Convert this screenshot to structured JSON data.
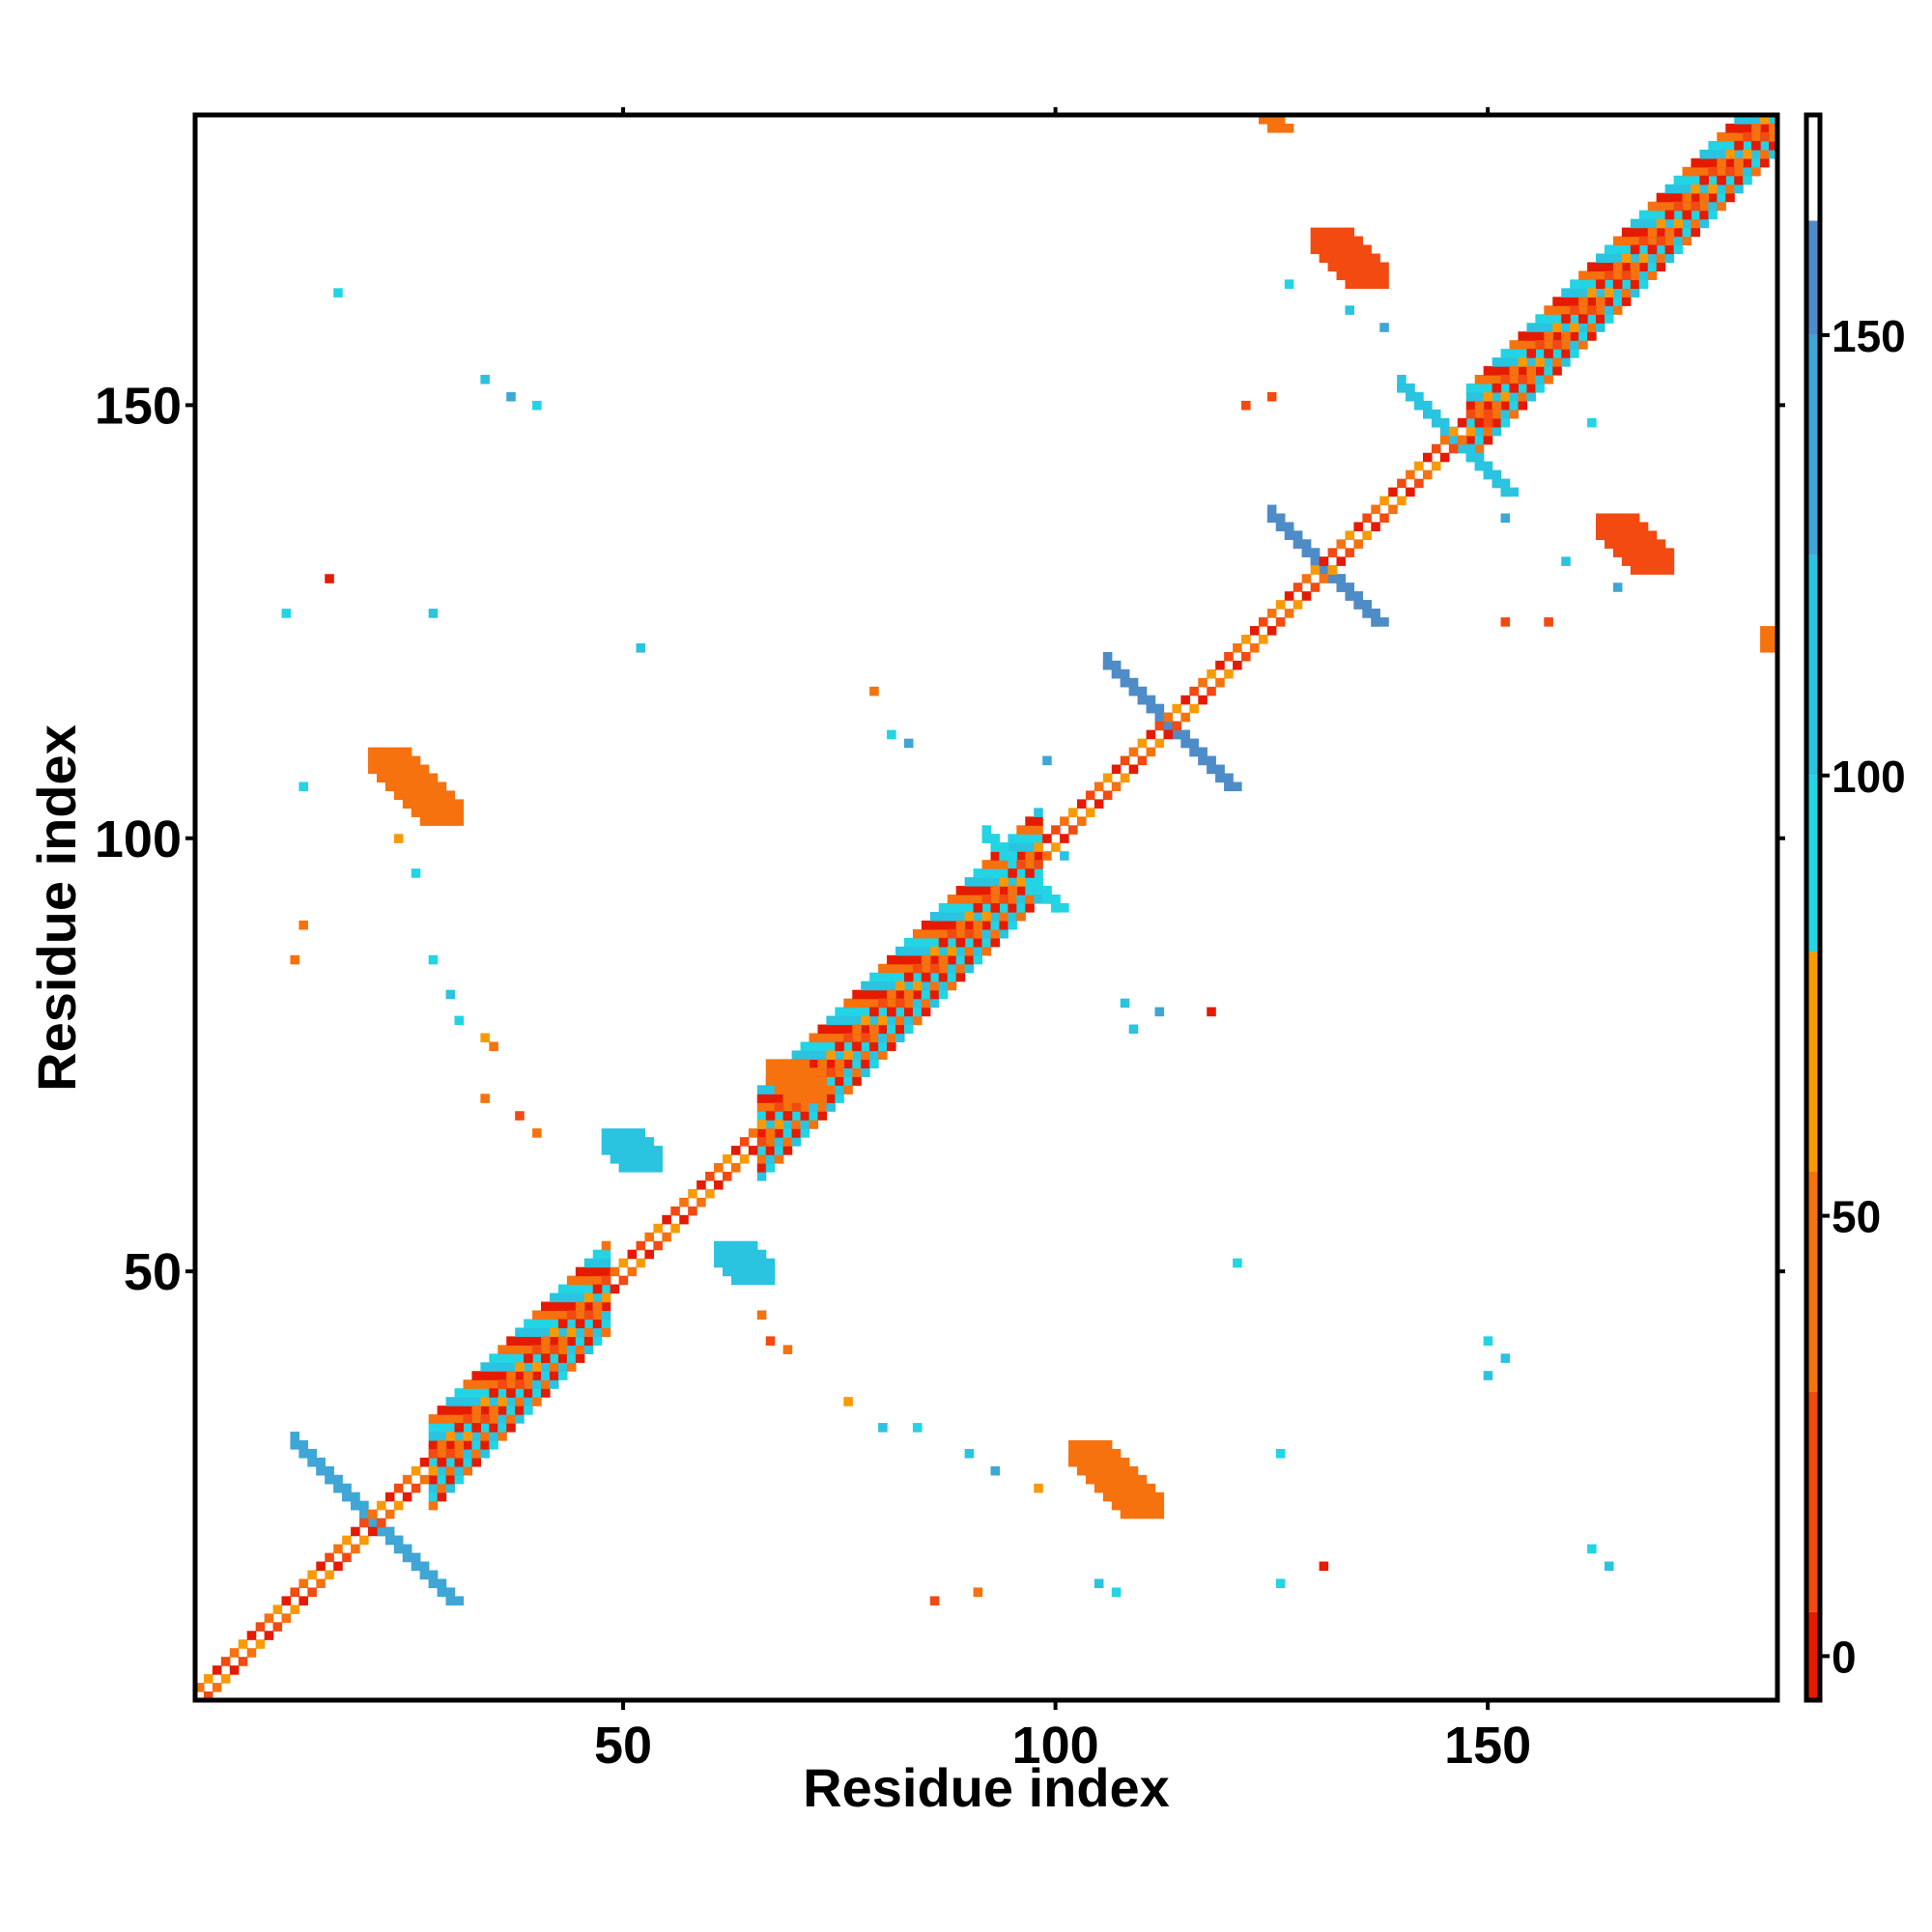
{
  "chart_data": {
    "type": "heatmap",
    "title": "",
    "xlabel": "Residue index",
    "ylabel": "Residue index",
    "xlim": [
      1,
      183
    ],
    "ylim": [
      1,
      183
    ],
    "x_ticks": [
      50,
      100,
      150
    ],
    "y_ticks": [
      50,
      100,
      150
    ],
    "x_tick_labels": [
      "50",
      "100",
      "150"
    ],
    "y_tick_labels": [
      "50",
      "100",
      "150"
    ],
    "grid": false,
    "legend": "colorbar-right",
    "colorbar": {
      "range": [
        -5,
        175
      ],
      "ticks": [
        0,
        50,
        100,
        150
      ],
      "tick_labels": [
        "0",
        "50",
        "100",
        "150"
      ],
      "segments": [
        {
          "from": -5,
          "to": 5,
          "color": "#e51a00"
        },
        {
          "from": 5,
          "to": 30,
          "color": "#f24a10"
        },
        {
          "from": 30,
          "to": 55,
          "color": "#f5720f"
        },
        {
          "from": 55,
          "to": 80,
          "color": "#f99a05"
        },
        {
          "from": 80,
          "to": 100,
          "color": "#22d4e4"
        },
        {
          "from": 100,
          "to": 125,
          "color": "#2ac3e0"
        },
        {
          "from": 125,
          "to": 150,
          "color": "#3fa6d6"
        },
        {
          "from": 150,
          "to": 163,
          "color": "#4e8cc8"
        },
        {
          "from": 163,
          "to": 175,
          "color": "#ffffff"
        }
      ]
    },
    "diagonal_bands": [
      {
        "from": 1,
        "to": 183,
        "half_width": 1,
        "colors": [
          "#e51a00",
          "#f24a10",
          "#f5720f",
          "#f99a05"
        ]
      }
    ],
    "diagonal_wide_regions": [
      {
        "from": 28,
        "to": 48,
        "half_width": 5,
        "colors": [
          "#22d4e4",
          "#f5720f",
          "#e51a00",
          "#2ac3e0"
        ]
      },
      {
        "from": 66,
        "to": 98,
        "half_width": 5,
        "colors": [
          "#22d4e4",
          "#f5720f",
          "#e51a00",
          "#2ac3e0"
        ]
      },
      {
        "from": 148,
        "to": 183,
        "half_width": 4,
        "colors": [
          "#22d4e4",
          "#f5720f",
          "#e51a00",
          "#2ac3e0"
        ]
      }
    ],
    "antidiagonal_crosses": [
      {
        "center": [
          21,
          21
        ],
        "half_length": 9,
        "color": "#3fa6d6"
      },
      {
        "center": [
          113,
          113
        ],
        "half_length": 7,
        "color": "#4e8cc8"
      },
      {
        "center": [
          131,
          131
        ],
        "half_length": 6,
        "color": "#4e8cc8"
      },
      {
        "center": [
          146,
          146
        ],
        "half_length": 6,
        "color": "#2ac3e0"
      },
      {
        "center": [
          96,
          96
        ],
        "half_length": 4,
        "color": "#22d4e4"
      }
    ],
    "blobs": [
      {
        "center": [
          26,
          106
        ],
        "size": [
          5,
          3
        ],
        "color": "#f5720f"
      },
      {
        "center": [
          107,
          26
        ],
        "size": [
          5,
          3
        ],
        "color": "#f5720f"
      },
      {
        "center": [
          134,
          167
        ],
        "size": [
          4,
          3
        ],
        "color": "#f24a10"
      },
      {
        "center": [
          167,
          134
        ],
        "size": [
          4,
          3
        ],
        "color": "#f24a10"
      },
      {
        "center": [
          124,
          184
        ],
        "size": [
          3,
          1
        ],
        "color": "#f5720f"
      },
      {
        "center": [
          183,
          123
        ],
        "size": [
          1,
          2
        ],
        "color": "#f5720f"
      },
      {
        "center": [
          64,
          51
        ],
        "size": [
          3,
          3
        ],
        "color": "#2ac3e0"
      },
      {
        "center": [
          51,
          64
        ],
        "size": [
          3,
          3
        ],
        "color": "#2ac3e0"
      },
      {
        "center": [
          70,
          72
        ],
        "size": [
          3,
          3
        ],
        "color": "#f5720f"
      }
    ],
    "scatter_points": [
      [
        17,
        163,
        "#22d4e4"
      ],
      [
        34,
        153,
        "#2ac3e0"
      ],
      [
        37,
        151,
        "#3fa6d6"
      ],
      [
        40,
        150,
        "#22d4e4"
      ],
      [
        11,
        126,
        "#22d4e4"
      ],
      [
        16,
        130,
        "#e51a00"
      ],
      [
        28,
        126,
        "#2ac3e0"
      ],
      [
        52,
        122,
        "#2ac3e0"
      ],
      [
        13,
        106,
        "#22d4e4"
      ],
      [
        24,
        100,
        "#f99a05"
      ],
      [
        26,
        96,
        "#22d4e4"
      ],
      [
        13,
        90,
        "#f5720f"
      ],
      [
        12,
        86,
        "#f5720f"
      ],
      [
        28,
        86,
        "#22d4e4"
      ],
      [
        30,
        82,
        "#2ac3e0"
      ],
      [
        31,
        79,
        "#22d4e4"
      ],
      [
        34,
        77,
        "#f99a05"
      ],
      [
        35,
        76,
        "#f5720f"
      ],
      [
        34,
        70,
        "#f5720f"
      ],
      [
        38,
        68,
        "#f24a10"
      ],
      [
        40,
        66,
        "#f5720f"
      ],
      [
        79,
        117,
        "#f5720f"
      ],
      [
        81,
        112,
        "#22d4e4"
      ],
      [
        83,
        111,
        "#3fa6d6"
      ],
      [
        108,
        81,
        "#2ac3e0"
      ],
      [
        112,
        80,
        "#3fa6d6"
      ],
      [
        118,
        80,
        "#e51a00"
      ],
      [
        109,
        78,
        "#2ac3e0"
      ],
      [
        121,
        51,
        "#22d4e4"
      ],
      [
        150,
        42,
        "#22d4e4"
      ],
      [
        152,
        40,
        "#2ac3e0"
      ],
      [
        150,
        38,
        "#2ac3e0"
      ],
      [
        66,
        45,
        "#f5720f"
      ],
      [
        67,
        42,
        "#f24a10"
      ],
      [
        69,
        41,
        "#f5720f"
      ],
      [
        76,
        35,
        "#f99a05"
      ],
      [
        80,
        32,
        "#2ac3e0"
      ],
      [
        84,
        32,
        "#22d4e4"
      ],
      [
        90,
        29,
        "#2ac3e0"
      ],
      [
        93,
        27,
        "#3fa6d6"
      ],
      [
        98,
        25,
        "#f99a05"
      ],
      [
        126,
        29,
        "#22d4e4"
      ],
      [
        131,
        16,
        "#e51a00"
      ],
      [
        126,
        14,
        "#22d4e4"
      ],
      [
        162,
        18,
        "#22d4e4"
      ],
      [
        164,
        16,
        "#2ac3e0"
      ],
      [
        86,
        12,
        "#f24a10"
      ],
      [
        91,
        13,
        "#f5720f"
      ],
      [
        105,
        14,
        "#2ac3e0"
      ],
      [
        107,
        13,
        "#22d4e4"
      ],
      [
        150,
        148,
        "#f24a10"
      ],
      [
        152,
        137,
        "#3fa6d6"
      ],
      [
        162,
        148,
        "#22d4e4"
      ],
      [
        159,
        132,
        "#2ac3e0"
      ],
      [
        165,
        129,
        "#3fa6d6"
      ],
      [
        152,
        125,
        "#f24a10"
      ],
      [
        157,
        125,
        "#f24a10"
      ],
      [
        125,
        151,
        "#f24a10"
      ],
      [
        122,
        150,
        "#f24a10"
      ],
      [
        127,
        164,
        "#22d4e4"
      ],
      [
        134,
        161,
        "#2ac3e0"
      ],
      [
        138,
        159,
        "#3fa6d6"
      ],
      [
        99,
        109,
        "#3fa6d6"
      ],
      [
        101,
        98,
        "#2ac3e0"
      ]
    ]
  }
}
